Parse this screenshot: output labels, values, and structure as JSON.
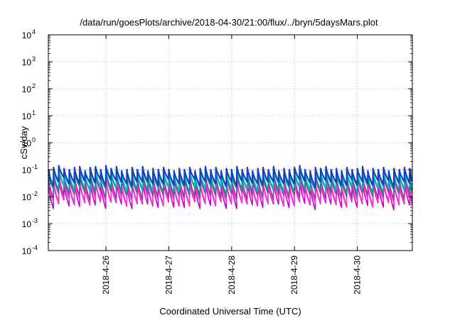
{
  "chart_data": {
    "type": "line",
    "title": "/data/run/goesPlots/archive/2018-04-30/21:00/flux/../bryn/5daysMars.plot",
    "xlabel": "Coordinated Universal Time (UTC)",
    "ylabel": "cSv/day",
    "yscale": "log",
    "ylim": [
      0.0001,
      10000
    ],
    "xlim": [
      "2018-04-25T02:00",
      "2018-04-30T21:00"
    ],
    "grid": true,
    "y_ticks": [
      {
        "base": "10",
        "exp": "-4",
        "value": 0.0001
      },
      {
        "base": "10",
        "exp": "-3",
        "value": 0.001
      },
      {
        "base": "10",
        "exp": "-2",
        "value": 0.01
      },
      {
        "base": "10",
        "exp": "-1",
        "value": 0.1
      },
      {
        "base": "10",
        "exp": "0",
        "value": 1
      },
      {
        "base": "10",
        "exp": "1",
        "value": 10
      },
      {
        "base": "10",
        "exp": "2",
        "value": 100
      },
      {
        "base": "10",
        "exp": "3",
        "value": 1000
      },
      {
        "base": "10",
        "exp": "4",
        "value": 10000
      }
    ],
    "x_ticks": [
      {
        "label": "2018-4-26",
        "value": "2018-04-26T00:00"
      },
      {
        "label": "2018-4-27",
        "value": "2018-04-27T00:00"
      },
      {
        "label": "2018-4-28",
        "value": "2018-04-28T00:00"
      },
      {
        "label": "2018-4-29",
        "value": "2018-04-29T00:00"
      },
      {
        "label": "2018-4-30",
        "value": "2018-04-30T00:00"
      }
    ],
    "reference_line": {
      "value": 0.1,
      "color": "#e03a2a"
    },
    "cycle_peaks": [
      [
        "2018-04-25T02:00",
        0.1
      ],
      [
        "2018-04-25T04:00",
        0.12
      ],
      [
        "2018-04-25T06:00",
        0.14
      ],
      [
        "2018-04-25T08:00",
        0.11
      ],
      [
        "2018-04-25T10:00",
        0.1
      ],
      [
        "2018-04-25T12:00",
        0.12
      ],
      [
        "2018-04-25T14:00",
        0.13
      ],
      [
        "2018-04-25T16:00",
        0.09
      ],
      [
        "2018-04-25T18:00",
        0.12
      ],
      [
        "2018-04-25T20:00",
        0.13
      ],
      [
        "2018-04-25T22:00",
        0.1
      ],
      [
        "2018-04-26T00:00",
        0.14
      ],
      [
        "2018-04-26T02:00",
        0.11
      ],
      [
        "2018-04-26T04:00",
        0.13
      ],
      [
        "2018-04-26T06:00",
        0.09
      ],
      [
        "2018-04-26T08:00",
        0.1
      ],
      [
        "2018-04-26T10:00",
        0.12
      ],
      [
        "2018-04-26T12:00",
        0.1
      ],
      [
        "2018-04-26T14:00",
        0.13
      ],
      [
        "2018-04-26T16:00",
        0.09
      ],
      [
        "2018-04-26T18:00",
        0.11
      ],
      [
        "2018-04-26T20:00",
        0.1
      ],
      [
        "2018-04-26T22:00",
        0.12
      ],
      [
        "2018-04-27T00:00",
        0.1
      ],
      [
        "2018-04-27T02:00",
        0.09
      ],
      [
        "2018-04-27T04:00",
        0.11
      ],
      [
        "2018-04-27T06:00",
        0.1
      ],
      [
        "2018-04-27T08:00",
        0.12
      ],
      [
        "2018-04-27T10:00",
        0.09
      ],
      [
        "2018-04-27T12:00",
        0.11
      ],
      [
        "2018-04-27T14:00",
        0.13
      ],
      [
        "2018-04-27T16:00",
        0.1
      ],
      [
        "2018-04-27T18:00",
        0.12
      ],
      [
        "2018-04-27T20:00",
        0.09
      ],
      [
        "2018-04-27T22:00",
        0.11
      ],
      [
        "2018-04-28T00:00",
        0.1
      ],
      [
        "2018-04-28T02:00",
        0.13
      ],
      [
        "2018-04-28T04:00",
        0.1
      ],
      [
        "2018-04-28T06:00",
        0.12
      ],
      [
        "2018-04-28T08:00",
        0.09
      ],
      [
        "2018-04-28T10:00",
        0.11
      ],
      [
        "2018-04-28T12:00",
        0.12
      ],
      [
        "2018-04-28T14:00",
        0.1
      ],
      [
        "2018-04-28T16:00",
        0.13
      ],
      [
        "2018-04-28T18:00",
        0.09
      ],
      [
        "2018-04-28T20:00",
        0.11
      ],
      [
        "2018-04-28T22:00",
        0.1
      ],
      [
        "2018-04-29T00:00",
        0.12
      ],
      [
        "2018-04-29T02:00",
        0.14
      ],
      [
        "2018-04-29T04:00",
        0.1
      ],
      [
        "2018-04-29T06:00",
        0.09
      ],
      [
        "2018-04-29T08:00",
        0.12
      ],
      [
        "2018-04-29T10:00",
        0.11
      ],
      [
        "2018-04-29T12:00",
        0.13
      ],
      [
        "2018-04-29T14:00",
        0.1
      ],
      [
        "2018-04-29T16:00",
        0.11
      ],
      [
        "2018-04-29T18:00",
        0.09
      ],
      [
        "2018-04-29T20:00",
        0.12
      ],
      [
        "2018-04-29T22:00",
        0.1
      ],
      [
        "2018-04-30T00:00",
        0.11
      ],
      [
        "2018-04-30T02:00",
        0.13
      ],
      [
        "2018-04-30T04:00",
        0.09
      ],
      [
        "2018-04-30T06:00",
        0.11
      ],
      [
        "2018-04-30T08:00",
        0.1
      ],
      [
        "2018-04-30T10:00",
        0.12
      ],
      [
        "2018-04-30T12:00",
        0.09
      ],
      [
        "2018-04-30T14:00",
        0.11
      ],
      [
        "2018-04-30T16:00",
        0.1
      ],
      [
        "2018-04-30T18:00",
        0.12
      ],
      [
        "2018-04-30T20:00",
        0.11
      ]
    ],
    "series": [
      {
        "color": "#cc00cc",
        "peak_ratio": 0.28,
        "min_ratio": 0.045
      },
      {
        "color": "#ff33dd",
        "peak_ratio": 0.35,
        "min_ratio": 0.06
      },
      {
        "color": "#884488",
        "peak_ratio": 0.5,
        "min_ratio": 0.1
      },
      {
        "color": "#009999",
        "peak_ratio": 0.65,
        "min_ratio": 0.16
      },
      {
        "color": "#00bbcc",
        "peak_ratio": 0.8,
        "min_ratio": 0.22
      },
      {
        "color": "#1144bb",
        "peak_ratio": 1.0,
        "min_ratio": 0.3
      }
    ]
  }
}
